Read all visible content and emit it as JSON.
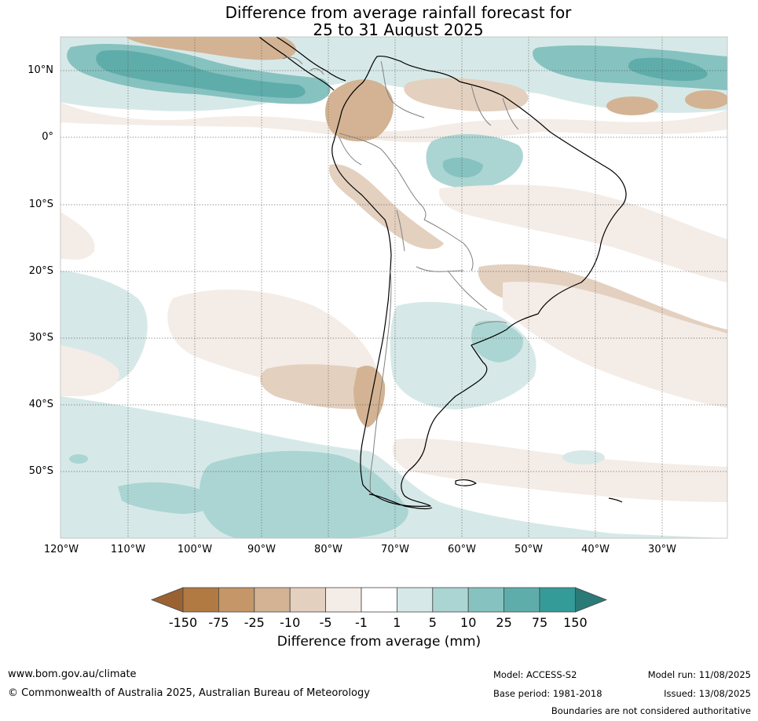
{
  "title": {
    "line1": "Difference from average rainfall forecast for",
    "line2": "25 to 31 August 2025"
  },
  "map": {
    "lat_labels": [
      "10°N",
      "0°",
      "10°S",
      "20°S",
      "30°S",
      "40°S",
      "50°S"
    ],
    "lon_labels": [
      "120°W",
      "110°W",
      "100°W",
      "90°W",
      "80°W",
      "70°W",
      "60°W",
      "50°W",
      "40°W",
      "30°W"
    ],
    "gridlines": true,
    "land_outline_color": "#000000",
    "border_color": "#808080"
  },
  "colorbar": {
    "ticks": [
      "-150",
      "-75",
      "-25",
      "-10",
      "-5",
      "-1",
      "1",
      "5",
      "10",
      "25",
      "75",
      "150"
    ],
    "colors": {
      "extend_low": "#9a6233",
      "b1": "#b07a42",
      "b2": "#c49668",
      "b3": "#d3b393",
      "b4": "#e4d0bf",
      "b5": "#f4ece7",
      "b6": "#ffffff",
      "b7": "#d6e9e8",
      "b8": "#abd5d3",
      "b9": "#86c2c0",
      "b10": "#5eadab",
      "b11": "#359b98",
      "extend_high": "#2a7a78"
    },
    "label": "Difference from average (mm)"
  },
  "footer": {
    "website": "www.bom.gov.au/climate",
    "copyright": "© Commonwealth of Australia 2025, Australian Bureau of Meteorology",
    "model": "Model: ACCESS-S2",
    "base_period": "Base period: 1981-2018",
    "model_run": "Model run: 11/08/2025",
    "issued": "Issued: 13/08/2025",
    "disclaimer": "Boundaries are not considered authoritative"
  }
}
